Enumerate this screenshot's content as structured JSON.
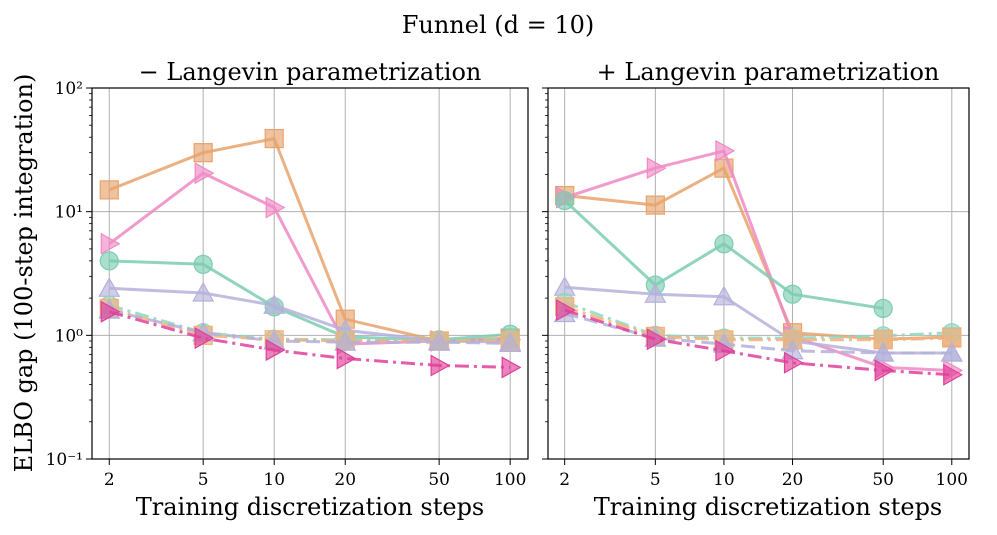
{
  "figure_title": "Funnel (d = 10)",
  "chart_data": [
    {
      "type": "line",
      "title": "− Langevin parametrization",
      "xlabel": "Training discretization steps",
      "ylabel": "ELBO gap (100-step integration)",
      "xscale": "log",
      "yscale": "log",
      "x": [
        2,
        5,
        10,
        20,
        50,
        100
      ],
      "xticks": [
        "2",
        "5",
        "10",
        "20",
        "50",
        "100"
      ],
      "ylim": [
        0.1,
        100
      ],
      "yticks": [
        "10⁻¹",
        "10⁰",
        "10¹",
        "10²"
      ],
      "grid": true,
      "series": [
        {
          "color": "#e7a36c",
          "marker": "square",
          "dash": "solid",
          "values": [
            15,
            30,
            39,
            1.35,
            0.9,
            0.95
          ]
        },
        {
          "color": "#ef8ac4",
          "marker": "triangle-right",
          "dash": "solid",
          "values": [
            5.5,
            20.5,
            10.8,
            0.85,
            0.9,
            0.92
          ]
        },
        {
          "color": "#7ccdb2",
          "marker": "circle",
          "dash": "solid",
          "values": [
            4.0,
            3.75,
            1.7,
            0.97,
            0.92,
            1.02
          ]
        },
        {
          "color": "#b6b2dc",
          "marker": "triangle-up",
          "dash": "solid",
          "values": [
            2.4,
            2.2,
            1.75,
            1.1,
            0.9,
            0.88
          ]
        },
        {
          "color": "#8fd7c1",
          "marker": "circle",
          "dash": "dashdot",
          "values": [
            1.75,
            1.05,
            0.93,
            0.92,
            0.9,
            0.93
          ]
        },
        {
          "color": "#f3b07c",
          "marker": "square",
          "dash": "dashdot",
          "values": [
            1.65,
            1.0,
            0.92,
            0.9,
            0.9,
            0.9
          ]
        },
        {
          "color": "#b3b0da",
          "marker": "triangle-up",
          "dash": "dashed",
          "values": [
            1.6,
            1.05,
            0.9,
            0.88,
            0.88,
            0.86
          ]
        },
        {
          "color": "#e0409a",
          "marker": "triangle-right",
          "dash": "dashdot",
          "values": [
            1.55,
            0.95,
            0.76,
            0.65,
            0.57,
            0.55
          ]
        }
      ]
    },
    {
      "type": "line",
      "title": "+ Langevin parametrization",
      "xlabel": "Training discretization steps",
      "ylabel": "",
      "xscale": "log",
      "yscale": "log",
      "x": [
        2,
        5,
        10,
        20,
        50,
        100
      ],
      "xticks": [
        "2",
        "5",
        "10",
        "20",
        "50",
        "100"
      ],
      "ylim": [
        0.1,
        100
      ],
      "yticks": [],
      "grid": true,
      "series": [
        {
          "color": "#e7a36c",
          "marker": "square",
          "dash": "solid",
          "values": [
            13.5,
            11.3,
            22.5,
            1.05,
            0.93,
            0.97
          ]
        },
        {
          "color": "#ef8ac4",
          "marker": "triangle-right",
          "dash": "solid",
          "values": [
            13,
            22.5,
            31,
            0.98,
            0.55,
            0.52
          ]
        },
        {
          "color": "#7ccdb2",
          "marker": "circle",
          "dash": "solid",
          "values": [
            12.3,
            2.55,
            5.5,
            2.15,
            1.65,
            null
          ]
        },
        {
          "color": "#b6b2dc",
          "marker": "triangle-up",
          "dash": "solid",
          "values": [
            2.45,
            2.15,
            2.05,
            0.9,
            0.72,
            0.72
          ]
        },
        {
          "color": "#8fd7c1",
          "marker": "circle",
          "dash": "dashdot",
          "values": [
            1.85,
            1.0,
            0.95,
            0.95,
            0.99,
            1.05
          ]
        },
        {
          "color": "#f3b07c",
          "marker": "square",
          "dash": "dashdot",
          "values": [
            1.7,
            0.98,
            0.92,
            0.92,
            0.92,
            0.95
          ]
        },
        {
          "color": "#b3b0da",
          "marker": "triangle-up",
          "dash": "dashed",
          "values": [
            1.5,
            0.95,
            0.85,
            0.75,
            0.72,
            0.72
          ]
        },
        {
          "color": "#e0409a",
          "marker": "triangle-right",
          "dash": "dashdot",
          "values": [
            1.6,
            0.93,
            0.75,
            0.6,
            0.52,
            0.48
          ]
        }
      ]
    }
  ]
}
